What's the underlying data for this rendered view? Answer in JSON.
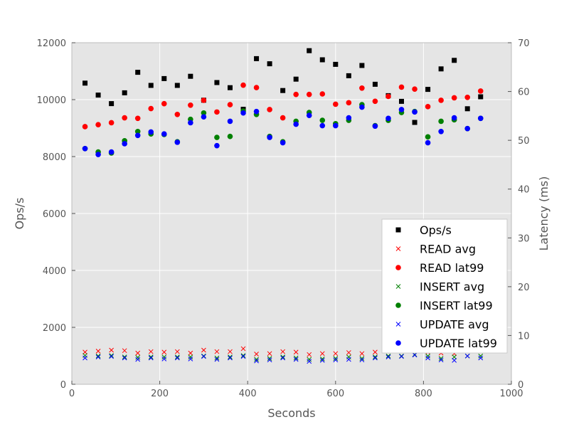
{
  "chart_data": {
    "type": "scatter",
    "xlabel": "Seconds",
    "ylabel": "Ops/s",
    "y2label": "Latency (ms)",
    "xlim": [
      0,
      1000
    ],
    "ylim": [
      0,
      12000
    ],
    "y2lim": [
      0,
      70
    ],
    "xticks": [
      "0",
      "200",
      "400",
      "600",
      "800",
      "1000"
    ],
    "yticks": [
      "0",
      "2000",
      "4000",
      "6000",
      "8000",
      "10000",
      "12000"
    ],
    "y2ticks": [
      "0",
      "10",
      "20",
      "30",
      "40",
      "50",
      "60",
      "70"
    ],
    "grid": true,
    "legend_position": "lower-right",
    "x": [
      30,
      60,
      90,
      120,
      150,
      180,
      210,
      240,
      270,
      300,
      330,
      360,
      390,
      420,
      450,
      480,
      510,
      540,
      570,
      600,
      630,
      660,
      690,
      720,
      750,
      780,
      810,
      840,
      870,
      900,
      930
    ],
    "series": [
      {
        "name": "Ops/s",
        "axis": "left",
        "marker": "square",
        "color": "#000000",
        "values": [
          10580,
          10160,
          9860,
          10240,
          10960,
          10500,
          10740,
          10500,
          10820,
          9980,
          10600,
          10420,
          9660,
          11440,
          11260,
          10320,
          10720,
          11720,
          11400,
          11240,
          10840,
          11200,
          10540,
          10140,
          9940,
          9200,
          10360,
          11080,
          11380,
          9680,
          10100
        ]
      },
      {
        "name": "READ avg",
        "axis": "right",
        "marker": "x",
        "color": "#ff0000",
        "values": [
          6.6,
          6.8,
          7.0,
          6.9,
          6.4,
          6.7,
          6.6,
          6.7,
          6.4,
          7.0,
          6.7,
          6.7,
          7.3,
          6.2,
          6.3,
          6.7,
          6.6,
          6.1,
          6.3,
          6.3,
          6.5,
          6.3,
          6.6,
          6.9,
          7.0,
          7.6,
          6.6,
          6.4,
          6.3,
          7.0,
          6.9
        ]
      },
      {
        "name": "READ lat99",
        "axis": "right",
        "marker": "circle",
        "color": "#ff0000",
        "values": [
          52.8,
          53.2,
          53.6,
          54.6,
          54.5,
          56.5,
          57.5,
          55.3,
          57.2,
          58.2,
          55.8,
          57.3,
          61.3,
          60.8,
          56.3,
          54.6,
          59.4,
          59.4,
          59.5,
          57.4,
          57.7,
          60.7,
          58.0,
          59.0,
          60.9,
          60.5,
          56.9,
          58.2,
          58.7,
          58.8,
          60.1
        ]
      },
      {
        "name": "INSERT avg",
        "axis": "right",
        "marker": "x",
        "color": "#008000",
        "values": [
          5.9,
          5.8,
          5.9,
          5.6,
          5.5,
          5.6,
          5.6,
          5.6,
          5.6,
          5.8,
          5.4,
          5.6,
          5.9,
          5.1,
          5.3,
          5.6,
          5.4,
          5.1,
          5.2,
          5.3,
          5.6,
          5.3,
          5.6,
          5.8,
          5.8,
          6.1,
          5.8,
          5.3,
          5.6,
          5.8,
          5.8
        ]
      },
      {
        "name": "INSERT lat99",
        "axis": "right",
        "marker": "circle",
        "color": "#008000",
        "values": [
          48.3,
          47.6,
          47.4,
          49.9,
          51.8,
          51.3,
          51.2,
          49.7,
          54.3,
          55.6,
          50.6,
          50.8,
          56.0,
          55.3,
          50.8,
          49.7,
          53.9,
          55.7,
          54.1,
          53.4,
          54.1,
          57.3,
          53.0,
          54.1,
          55.7,
          55.9,
          50.7,
          53.9,
          54.2,
          52.4,
          54.5
        ]
      },
      {
        "name": "UPDATE avg",
        "axis": "right",
        "marker": "x",
        "color": "#0000ff",
        "values": [
          5.4,
          5.6,
          5.7,
          5.4,
          5.1,
          5.4,
          5.2,
          5.4,
          5.2,
          5.7,
          5.1,
          5.4,
          5.7,
          4.8,
          5.0,
          5.4,
          5.1,
          4.7,
          4.9,
          5.0,
          5.1,
          5.0,
          5.4,
          5.6,
          5.7,
          6.0,
          5.4,
          5.0,
          4.9,
          5.8,
          5.4
        ]
      },
      {
        "name": "UPDATE lat99",
        "axis": "right",
        "marker": "circle",
        "color": "#0000ff",
        "values": [
          48.3,
          47.1,
          47.6,
          49.3,
          51.0,
          51.7,
          51.3,
          49.6,
          53.6,
          54.8,
          48.9,
          53.9,
          55.6,
          55.9,
          50.6,
          49.5,
          53.3,
          55.1,
          53.0,
          53.0,
          54.6,
          56.8,
          52.9,
          54.5,
          56.3,
          55.8,
          49.5,
          51.8,
          54.6,
          52.4,
          54.5
        ]
      }
    ]
  }
}
